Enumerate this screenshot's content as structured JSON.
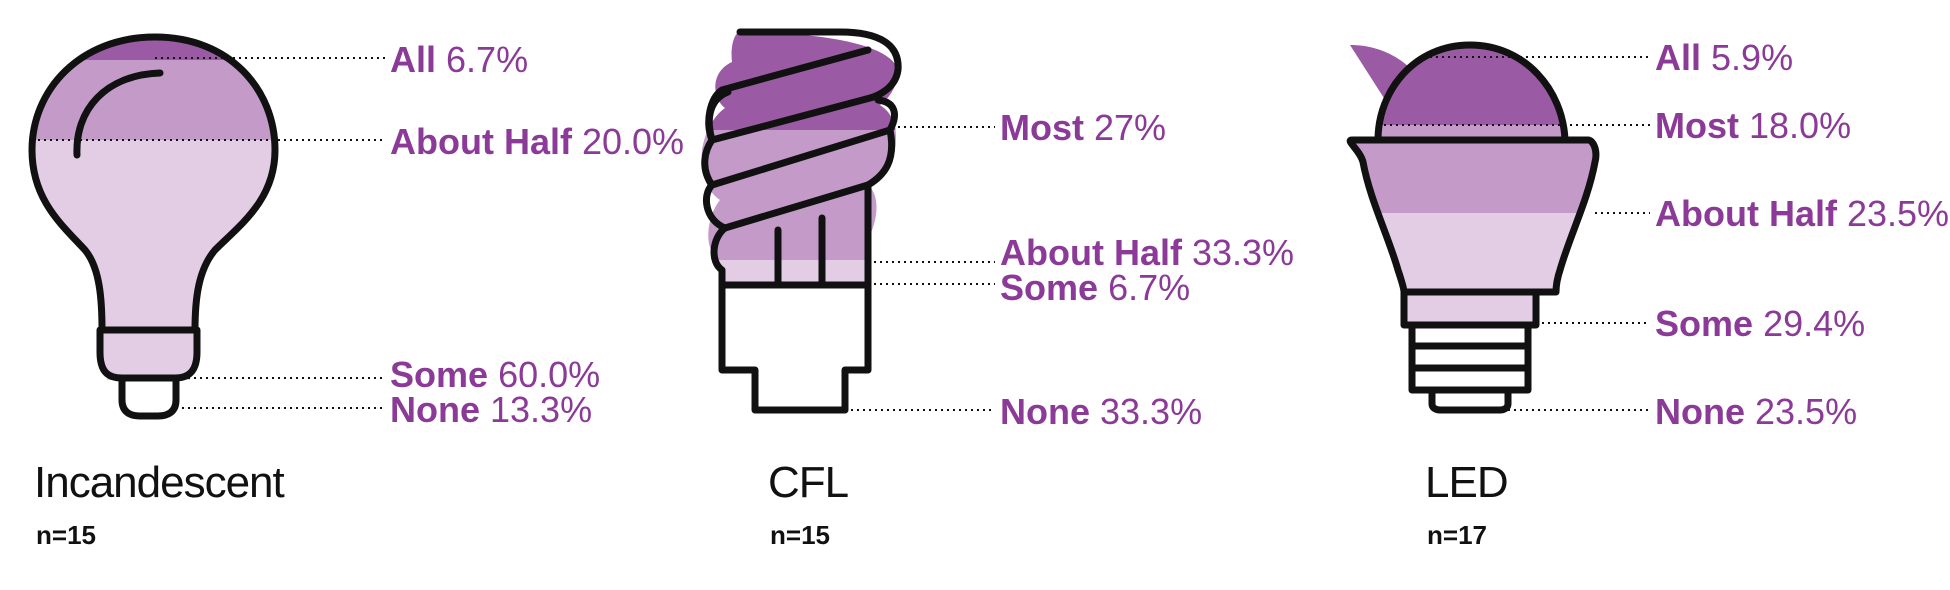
{
  "colors": {
    "darkest": "#9b5aa4",
    "mid": "#c39ac8",
    "light": "#e3cde5",
    "outline": "#111111",
    "label": "#8b3a97"
  },
  "chart_data": [
    {
      "type": "bar",
      "name": "Incandescent",
      "n_label": "n=15",
      "categories": [
        "All",
        "About Half",
        "Some",
        "None"
      ],
      "values": [
        6.7,
        20.0,
        60.0,
        13.3
      ],
      "value_labels": [
        "6.7%",
        "20.0%",
        "60.0%",
        "13.3%"
      ]
    },
    {
      "type": "bar",
      "name": "CFL",
      "n_label": "n=15",
      "categories": [
        "Most",
        "About Half",
        "Some",
        "None"
      ],
      "values": [
        27,
        33.3,
        6.7,
        33.3
      ],
      "value_labels": [
        "27%",
        "33.3%",
        "6.7%",
        "33.3%"
      ]
    },
    {
      "type": "bar",
      "name": "LED",
      "n_label": "n=17",
      "categories": [
        "All",
        "Most",
        "About Half",
        "Some",
        "None"
      ],
      "values": [
        5.9,
        18.0,
        23.5,
        29.4,
        23.5
      ],
      "value_labels": [
        "5.9%",
        "18.0%",
        "23.5%",
        "29.4%",
        "23.5%"
      ]
    }
  ]
}
